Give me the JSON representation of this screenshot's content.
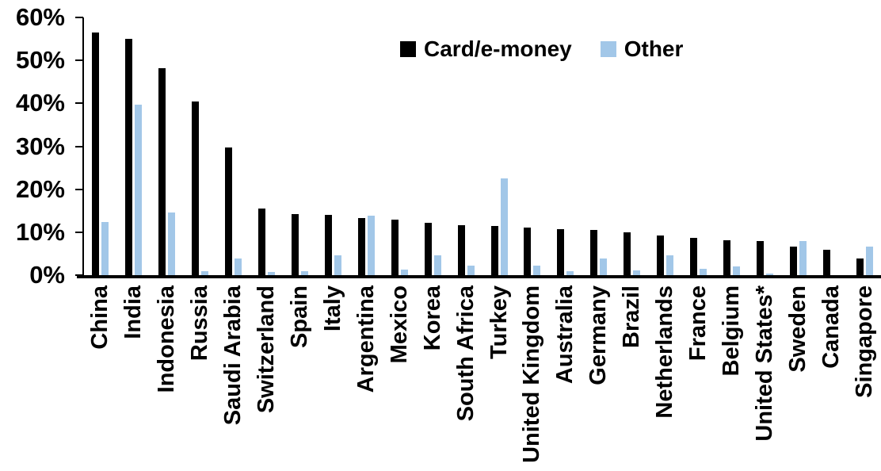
{
  "chart_data": {
    "type": "bar",
    "title": "",
    "xlabel": "",
    "ylabel": "",
    "categories": [
      "China",
      "India",
      "Indonesia",
      "Russia",
      "Saudi Arabia",
      "Switzerland",
      "Spain",
      "Italy",
      "Argentina",
      "Mexico",
      "Korea",
      "South Africa",
      "Turkey",
      "United Kingdom",
      "Australia",
      "Germany",
      "Brazil",
      "Netherlands",
      "France",
      "Belgium",
      "United States*",
      "Sweden",
      "Canada",
      "Singapore"
    ],
    "series": [
      {
        "name": "Card/e-money",
        "color": "#000000",
        "values": [
          56.5,
          55.0,
          48.2,
          40.5,
          29.8,
          15.6,
          14.2,
          14.0,
          13.3,
          12.9,
          12.1,
          11.6,
          11.5,
          11.0,
          10.7,
          10.5,
          9.9,
          9.2,
          8.6,
          8.2,
          7.9,
          6.6,
          6.0,
          3.9
        ]
      },
      {
        "name": "Other",
        "color": "#A2C7E8",
        "values": [
          12.3,
          39.7,
          14.6,
          1.0,
          3.9,
          0.8,
          1.0,
          4.7,
          13.8,
          1.3,
          4.6,
          2.3,
          22.6,
          2.3,
          1.0,
          3.9,
          1.2,
          4.7,
          1.4,
          2.0,
          0.3,
          8.0,
          0,
          6.6
        ]
      }
    ],
    "ylim": [
      0,
      60
    ],
    "ytick_values": [
      0,
      10,
      20,
      30,
      40,
      50,
      60
    ],
    "ytick_labels": [
      "0%",
      "10%",
      "20%",
      "30%",
      "40%",
      "50%",
      "60%"
    ],
    "grid": false,
    "legend_position": "top-center"
  }
}
